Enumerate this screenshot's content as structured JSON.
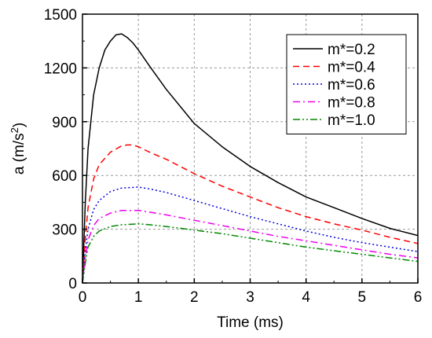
{
  "chart_data": {
    "type": "line",
    "title": "",
    "xlabel": "Time (ms)",
    "ylabel_main": "a (m/s",
    "ylabel_sup": "2",
    "ylabel_close": ")",
    "xlim": [
      0,
      6
    ],
    "ylim": [
      0,
      1500
    ],
    "xticks": [
      "0",
      "1",
      "2",
      "3",
      "4",
      "5",
      "6"
    ],
    "yticks": [
      "0",
      "300",
      "600",
      "900",
      "1200",
      "1500"
    ],
    "grid": true,
    "legend_position": "top-right",
    "series": [
      {
        "name": "m*=0.2",
        "color": "#000000",
        "dash": "solid",
        "x": [
          0,
          0.05,
          0.1,
          0.2,
          0.3,
          0.4,
          0.5,
          0.6,
          0.7,
          0.8,
          0.9,
          1.0,
          1.2,
          1.5,
          2.0,
          2.5,
          3.0,
          3.5,
          4.0,
          4.5,
          5.0,
          5.5,
          6.0
        ],
        "y": [
          0,
          450,
          750,
          1050,
          1200,
          1300,
          1350,
          1385,
          1390,
          1370,
          1340,
          1300,
          1210,
          1080,
          890,
          760,
          650,
          560,
          480,
          420,
          360,
          305,
          265
        ]
      },
      {
        "name": "m*=0.4",
        "color": "#ff0000",
        "dash": "dashed",
        "x": [
          0,
          0.05,
          0.1,
          0.2,
          0.3,
          0.5,
          0.7,
          0.8,
          0.9,
          1.0,
          1.2,
          1.5,
          2.0,
          2.5,
          3.0,
          3.5,
          4.0,
          4.5,
          5.0,
          5.5,
          6.0
        ],
        "y": [
          0,
          250,
          420,
          580,
          660,
          730,
          765,
          770,
          770,
          760,
          730,
          690,
          610,
          540,
          480,
          420,
          370,
          330,
          295,
          255,
          220
        ]
      },
      {
        "name": "m*=0.6",
        "color": "#0000dd",
        "dash": "dotted",
        "x": [
          0,
          0.05,
          0.1,
          0.2,
          0.3,
          0.5,
          0.7,
          1.0,
          1.2,
          1.5,
          2.0,
          2.5,
          3.0,
          3.5,
          4.0,
          4.5,
          5.0,
          5.5,
          6.0
        ],
        "y": [
          0,
          180,
          300,
          410,
          460,
          510,
          530,
          535,
          525,
          505,
          460,
          415,
          370,
          330,
          290,
          255,
          225,
          200,
          175
        ]
      },
      {
        "name": "m*=0.8",
        "color": "#ee00ee",
        "dash": "dashdot",
        "x": [
          0,
          0.05,
          0.1,
          0.2,
          0.3,
          0.5,
          0.7,
          1.0,
          1.2,
          1.5,
          2.0,
          2.5,
          3.0,
          3.5,
          4.0,
          4.5,
          5.0,
          5.5,
          6.0
        ],
        "y": [
          0,
          140,
          240,
          320,
          360,
          390,
          405,
          405,
          395,
          380,
          350,
          320,
          290,
          260,
          235,
          210,
          185,
          160,
          140
        ]
      },
      {
        "name": "m*=1.0",
        "color": "#008800",
        "dash": "dashdotdot",
        "x": [
          0,
          0.05,
          0.1,
          0.2,
          0.3,
          0.5,
          0.7,
          1.0,
          1.2,
          1.5,
          2.0,
          2.5,
          3.0,
          3.5,
          4.0,
          4.5,
          5.0,
          5.5,
          6.0
        ],
        "y": [
          0,
          110,
          200,
          260,
          290,
          315,
          325,
          330,
          325,
          315,
          295,
          275,
          250,
          225,
          200,
          180,
          160,
          140,
          120
        ]
      }
    ]
  }
}
